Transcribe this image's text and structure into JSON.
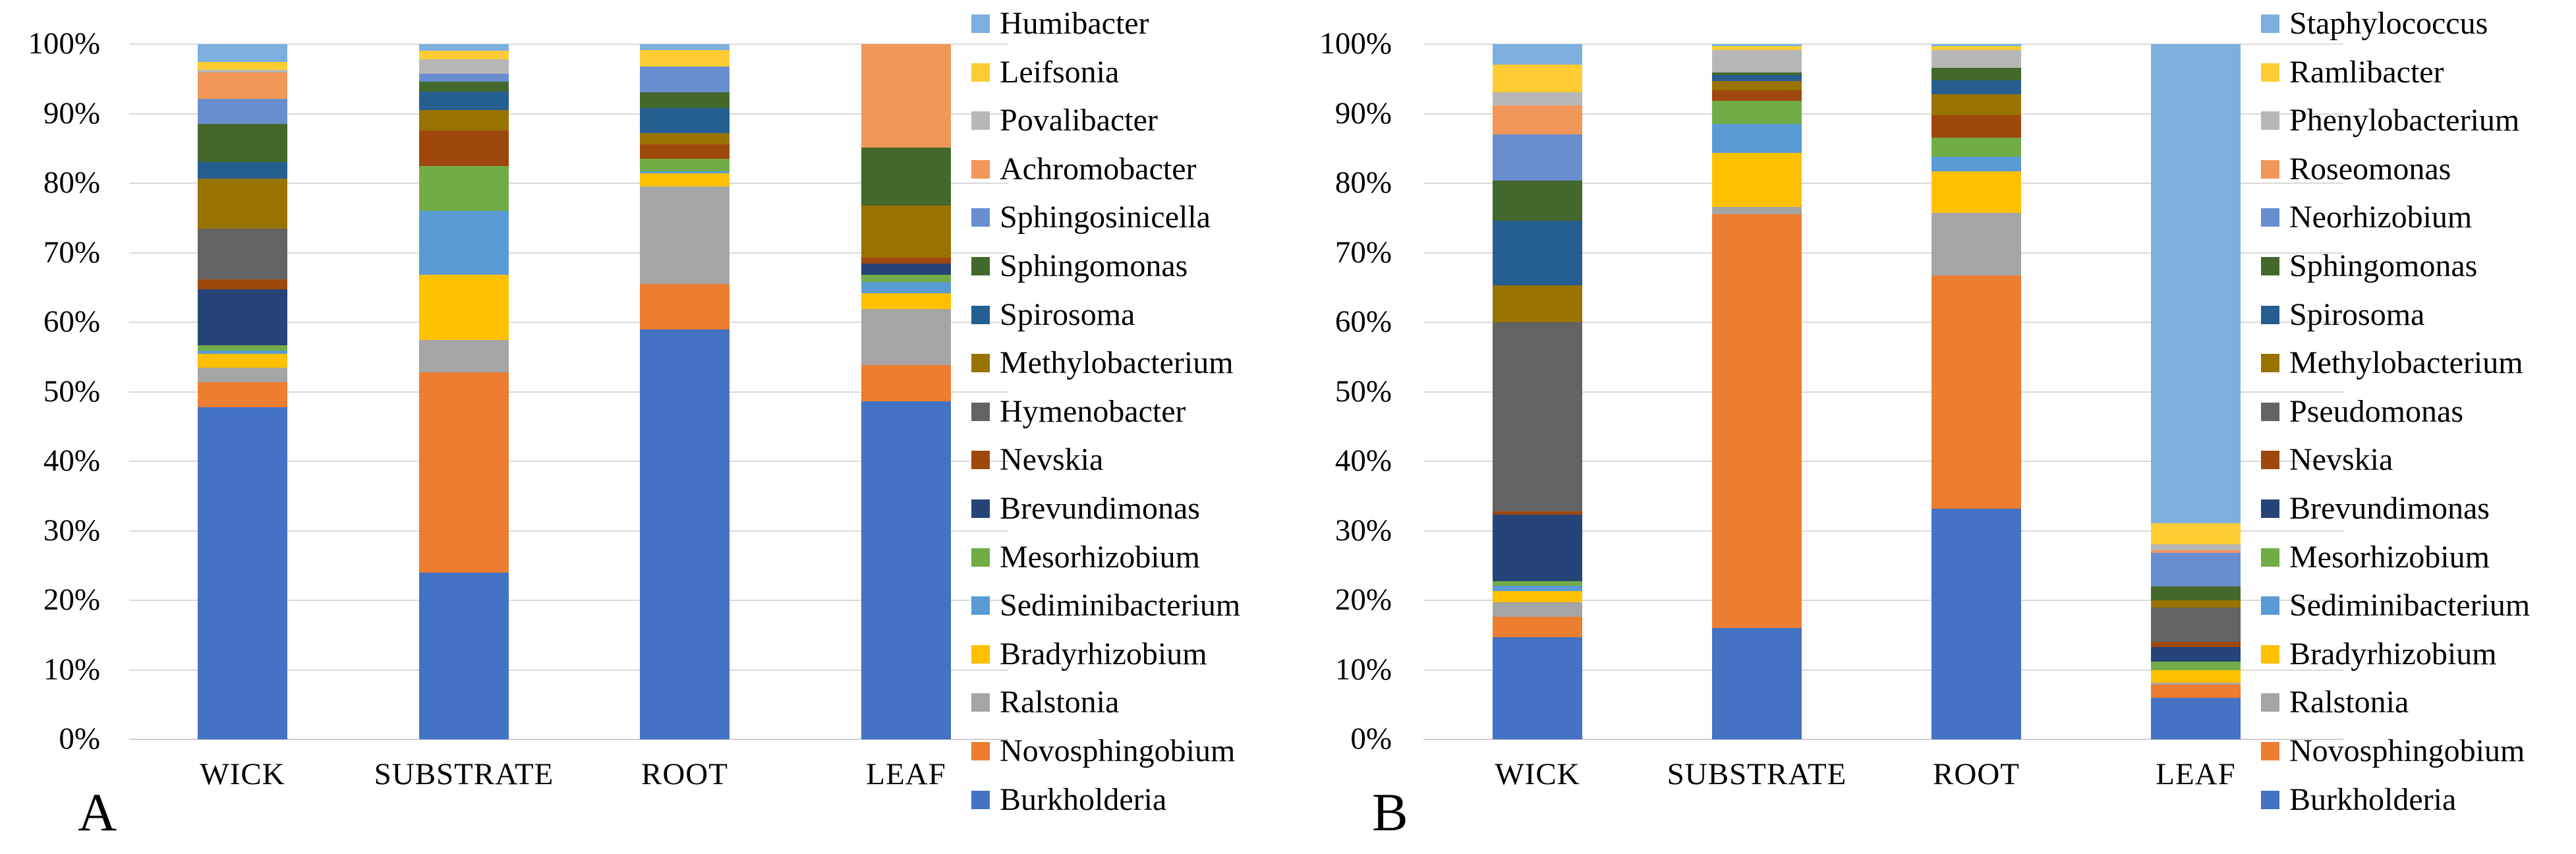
{
  "figure": {
    "panel_a_letter": "A",
    "panel_b_letter": "B",
    "background": "#ffffff",
    "gridline_color": "#d9d9d9"
  },
  "chart_data": [
    {
      "type": "bar",
      "subtype": "stacked-100-percent",
      "panel": "A",
      "categories": [
        "WICK",
        "SUBSTRATE",
        "ROOT",
        "LEAF"
      ],
      "y_axis": {
        "tick_labels": [
          "0%",
          "10%",
          "20%",
          "30%",
          "40%",
          "50%",
          "60%",
          "70%",
          "80%",
          "90%",
          "100%"
        ],
        "range": [
          0,
          100
        ],
        "grid": true
      },
      "legend_position": "right",
      "legend_order_top_to_bottom": [
        "Humibacter",
        "Leifsonia",
        "Povalibacter",
        "Achromobacter",
        "Sphingosinicella",
        "Sphingomonas",
        "Spirosoma",
        "Methylobacterium",
        "Hymenobacter",
        "Nevskia",
        "Brevundimonas",
        "Mesorhizobium",
        "Sediminibacterium",
        "Bradyrhizobium",
        "Ralstonia",
        "Novosphingobium",
        "Burkholderia"
      ],
      "series": [
        {
          "name": "Burkholderia",
          "color": "#4472C4",
          "values": [
            47.8,
            24.0,
            59.0,
            48.6
          ]
        },
        {
          "name": "Novosphingobium",
          "color": "#ED7D31",
          "values": [
            3.6,
            28.8,
            6.5,
            5.2
          ]
        },
        {
          "name": "Ralstonia",
          "color": "#A5A5A5",
          "values": [
            2.1,
            4.6,
            14.0,
            8.1
          ]
        },
        {
          "name": "Bradyrhizobium",
          "color": "#FFC000",
          "values": [
            2.0,
            9.4,
            1.9,
            2.3
          ]
        },
        {
          "name": "Sediminibacterium",
          "color": "#5B9BD5",
          "values": [
            0.4,
            9.2,
            0.3,
            1.6
          ]
        },
        {
          "name": "Mesorhizobium",
          "color": "#70AD47",
          "values": [
            0.8,
            6.5,
            1.8,
            1.0
          ]
        },
        {
          "name": "Brevundimonas",
          "color": "#264478",
          "values": [
            8.0,
            0,
            0,
            1.6
          ]
        },
        {
          "name": "Nevskia",
          "color": "#9E480E",
          "values": [
            1.5,
            5.1,
            2.1,
            0.9
          ]
        },
        {
          "name": "Hymenobacter",
          "color": "#636363",
          "values": [
            7.3,
            0,
            0,
            0
          ]
        },
        {
          "name": "Methylobacterium",
          "color": "#997300",
          "values": [
            7.2,
            2.9,
            1.6,
            7.5
          ]
        },
        {
          "name": "Spirosoma",
          "color": "#255E91",
          "values": [
            2.3,
            2.7,
            3.6,
            0
          ]
        },
        {
          "name": "Sphingomonas",
          "color": "#43682B",
          "values": [
            5.5,
            1.4,
            2.3,
            8.3
          ]
        },
        {
          "name": "Sphingosinicella",
          "color": "#698ED0",
          "values": [
            3.6,
            1.1,
            3.7,
            0
          ]
        },
        {
          "name": "Achromobacter",
          "color": "#F1975A",
          "values": [
            3.8,
            0,
            0,
            14.9
          ]
        },
        {
          "name": "Povalibacter",
          "color": "#B7B7B7",
          "values": [
            0.4,
            2.1,
            0,
            0
          ]
        },
        {
          "name": "Leifsonia",
          "color": "#FFCD33",
          "values": [
            1.2,
            1.3,
            2.4,
            0
          ]
        },
        {
          "name": "Humibacter",
          "color": "#7CAFDD",
          "values": [
            2.5,
            0.9,
            0.8,
            0
          ]
        }
      ]
    },
    {
      "type": "bar",
      "subtype": "stacked-100-percent",
      "panel": "B",
      "categories": [
        "WICK",
        "SUBSTRATE",
        "ROOT",
        "LEAF"
      ],
      "y_axis": {
        "tick_labels": [
          "0%",
          "10%",
          "20%",
          "30%",
          "40%",
          "50%",
          "60%",
          "70%",
          "80%",
          "90%",
          "100%"
        ],
        "range": [
          0,
          100
        ],
        "grid": true
      },
      "legend_position": "right",
      "legend_order_top_to_bottom": [
        "Staphylococcus",
        "Ramlibacter",
        "Phenylobacterium",
        "Roseomonas",
        "Neorhizobium",
        "Sphingomonas",
        "Spirosoma",
        "Methylobacterium",
        "Pseudomonas",
        "Nevskia",
        "Brevundimonas",
        "Mesorhizobium",
        "Sediminibacterium",
        "Bradyrhizobium",
        "Ralstonia",
        "Novosphingobium",
        "Burkholderia"
      ],
      "series": [
        {
          "name": "Burkholderia",
          "color": "#4472C4",
          "values": [
            14.7,
            16.0,
            33.2,
            6.0
          ]
        },
        {
          "name": "Novosphingobium",
          "color": "#ED7D31",
          "values": [
            2.9,
            59.5,
            33.5,
            1.9
          ]
        },
        {
          "name": "Ralstonia",
          "color": "#A5A5A5",
          "values": [
            2.1,
            1.1,
            9.0,
            0.3
          ]
        },
        {
          "name": "Bradyrhizobium",
          "color": "#FFC000",
          "values": [
            1.6,
            7.8,
            6.0,
            1.8
          ]
        },
        {
          "name": "Sediminibacterium",
          "color": "#5B9BD5",
          "values": [
            0.8,
            4.1,
            2.1,
            0
          ]
        },
        {
          "name": "Mesorhizobium",
          "color": "#70AD47",
          "values": [
            0.7,
            3.4,
            2.7,
            1.2
          ]
        },
        {
          "name": "Brevundimonas",
          "color": "#264478",
          "values": [
            9.5,
            0,
            0,
            2.1
          ]
        },
        {
          "name": "Nevskia",
          "color": "#9E480E",
          "values": [
            0.5,
            1.5,
            3.3,
            0.7
          ]
        },
        {
          "name": "Pseudomonas",
          "color": "#636363",
          "values": [
            27.2,
            0,
            0,
            5.0
          ]
        },
        {
          "name": "Methylobacterium",
          "color": "#997300",
          "values": [
            5.3,
            1.3,
            3.0,
            1.0
          ]
        },
        {
          "name": "Spirosoma",
          "color": "#255E91",
          "values": [
            9.3,
            0.9,
            2.0,
            0
          ]
        },
        {
          "name": "Sphingomonas",
          "color": "#43682B",
          "values": [
            5.8,
            0.3,
            1.8,
            2.0
          ]
        },
        {
          "name": "Neorhizobium",
          "color": "#698ED0",
          "values": [
            6.6,
            0,
            0,
            4.8
          ]
        },
        {
          "name": "Roseomonas",
          "color": "#F1975A",
          "values": [
            4.2,
            0,
            0,
            0.4
          ]
        },
        {
          "name": "Phenylobacterium",
          "color": "#B7B7B7",
          "values": [
            1.9,
            3.3,
            2.6,
            0.9
          ]
        },
        {
          "name": "Ramlibacter",
          "color": "#FFCD33",
          "values": [
            4.0,
            0.5,
            0.5,
            3.0
          ]
        },
        {
          "name": "Staphylococcus",
          "color": "#7CAFDD",
          "values": [
            2.9,
            0.3,
            0.3,
            68.9
          ]
        }
      ]
    }
  ]
}
